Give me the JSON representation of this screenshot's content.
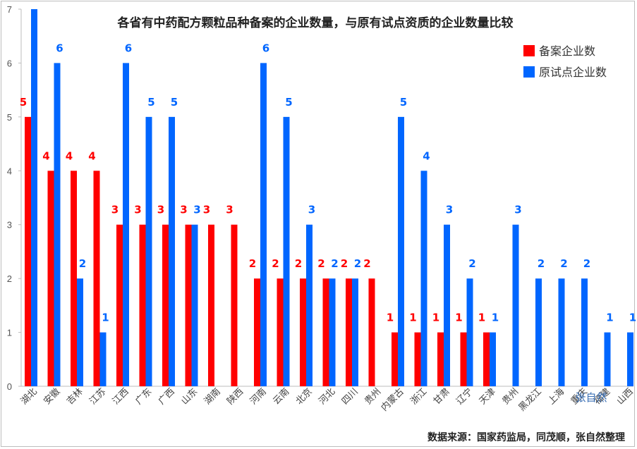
{
  "chart_data": {
    "type": "bar",
    "title": "各省有中药配方颗粒品种备案的企业数量，与原有试点资质的企业数量比较",
    "xlabel": "",
    "ylabel": "",
    "ylim": [
      0,
      7
    ],
    "yticks": [
      0,
      1,
      2,
      3,
      4,
      5,
      6,
      7
    ],
    "grid": false,
    "legend_position": "top-right",
    "categories": [
      "湖北",
      "安徽",
      "吉林",
      "江苏",
      "江西",
      "广东",
      "广西",
      "山东",
      "湖南",
      "陕西",
      "河南",
      "云南",
      "北京",
      "河北",
      "四川",
      "贵州",
      "内蒙古",
      "浙江",
      "甘肃",
      "辽宁",
      "天津",
      "贵州",
      "黑龙江",
      "上海",
      "重庆",
      "福建",
      "山西"
    ],
    "series": [
      {
        "name": "备案企业数",
        "color": "#ff0000",
        "values": [
          5,
          4,
          4,
          4,
          3,
          3,
          3,
          3,
          3,
          3,
          2,
          2,
          2,
          2,
          2,
          2,
          1,
          1,
          1,
          1,
          1,
          null,
          null,
          null,
          null,
          null,
          null
        ]
      },
      {
        "name": "原试点企业数",
        "color": "#0066ff",
        "values": [
          7,
          6,
          2,
          1,
          6,
          5,
          5,
          3,
          null,
          null,
          6,
          5,
          3,
          2,
          2,
          null,
          5,
          4,
          3,
          2,
          1,
          3,
          2,
          2,
          2,
          1,
          1
        ]
      }
    ]
  },
  "source_note": "数据来源：国家药监局，同茂顺，张自然整理",
  "watermark": "张自然"
}
